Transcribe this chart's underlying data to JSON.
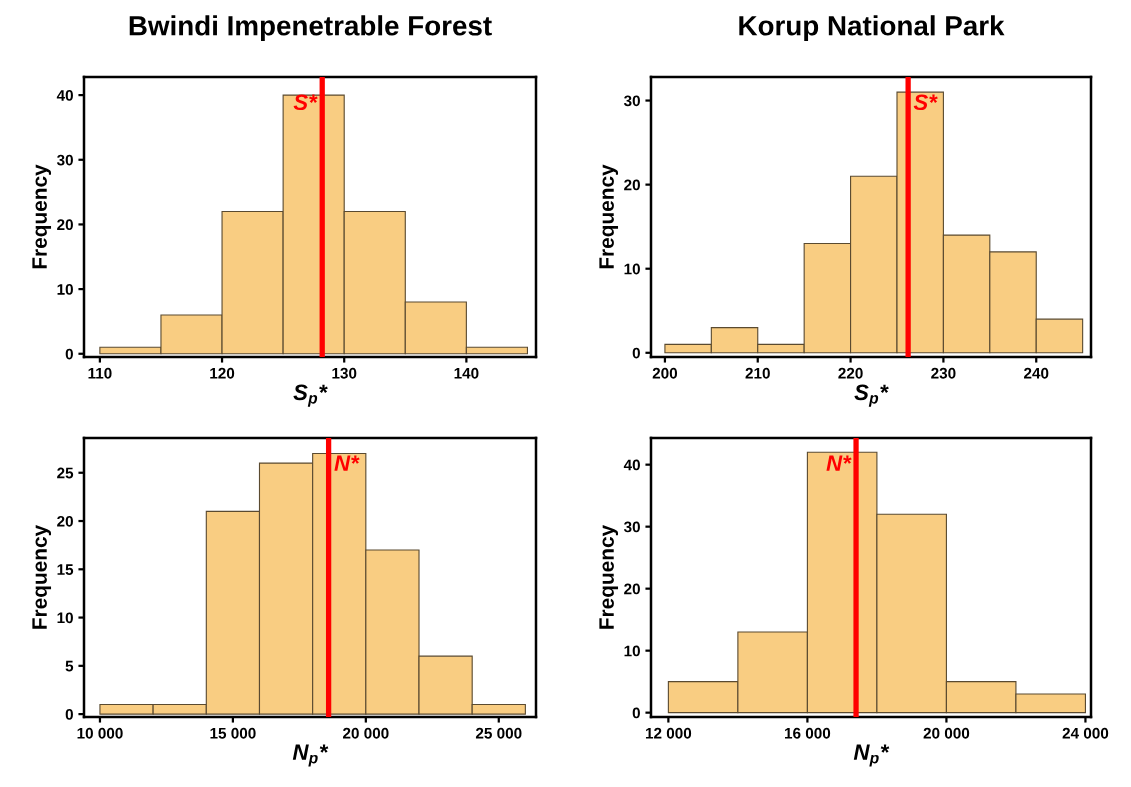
{
  "chart_data": [
    {
      "type": "histogram",
      "title": "Bwindi Impenetrable Forest",
      "xlabel": "S$_{p}$*",
      "ylabel": "Frequency",
      "color": "#f9cd82",
      "bins": [
        110,
        115,
        120,
        125,
        130,
        135,
        140,
        145
      ],
      "values": [
        1,
        6,
        22,
        40,
        22,
        8,
        1
      ],
      "xlim": [
        108.7,
        145.7
      ],
      "xticks": [
        110,
        120,
        130,
        140
      ],
      "ylim": [
        -0.5,
        42.8
      ],
      "yticks": [
        0,
        10,
        20,
        30,
        40
      ],
      "grid": false,
      "ref_lines": [
        {
          "axis": "x",
          "value": 128.2,
          "label": "S*",
          "color": "#ff0000"
        }
      ]
    },
    {
      "type": "histogram",
      "title": "Korup National Park",
      "xlabel": "S$_{p}$*",
      "ylabel": "Frequency",
      "color": "#f9cd82",
      "bins": [
        200,
        205,
        210,
        215,
        220,
        225,
        230,
        235,
        240,
        245
      ],
      "values": [
        1,
        3,
        1,
        13,
        21,
        31,
        14,
        12,
        4
      ],
      "xlim": [
        198.5,
        245.9
      ],
      "xticks": [
        200,
        210,
        220,
        230,
        240
      ],
      "ylim": [
        -0.5,
        32.8
      ],
      "yticks": [
        0,
        10,
        20,
        30
      ],
      "grid": false,
      "ref_lines": [
        {
          "axis": "x",
          "value": 226.2,
          "label": "S*",
          "color": "#ff0000"
        }
      ]
    },
    {
      "type": "histogram",
      "xlabel": "N$_{p}$*",
      "ylabel": "Frequency",
      "color": "#f9cd82",
      "bins": [
        10000,
        12000,
        14000,
        16000,
        18000,
        20000,
        22000,
        24000,
        26000
      ],
      "values": [
        1,
        1,
        21,
        26,
        27,
        17,
        6,
        1
      ],
      "xlim": [
        9400,
        26400
      ],
      "xticks": [
        {
          "value": 10000,
          "label": "10 000"
        },
        {
          "value": 15000,
          "label": "15 000"
        },
        {
          "value": 20000,
          "label": "20 000"
        },
        {
          "value": 25000,
          "label": "25 000"
        }
      ],
      "ylim": [
        -0.3,
        28.6
      ],
      "yticks": [
        0,
        5,
        10,
        15,
        20,
        25
      ],
      "grid": false,
      "ref_lines": [
        {
          "axis": "x",
          "value": 18600,
          "label": "N*",
          "color": "#ff0000"
        }
      ]
    },
    {
      "type": "histogram",
      "xlabel": "N$_{p}$*",
      "ylabel": "Frequency",
      "color": "#f9cd82",
      "bins": [
        12000,
        14000,
        16000,
        18000,
        20000,
        22000,
        24000
      ],
      "values": [
        5,
        13,
        42,
        32,
        5,
        3
      ],
      "xlim": [
        11500,
        24160
      ],
      "xticks": [
        {
          "value": 12000,
          "label": "12 000"
        },
        {
          "value": 16000,
          "label": "16 000"
        },
        {
          "value": 20000,
          "label": "20 000"
        },
        {
          "value": 24000,
          "label": "24 000"
        }
      ],
      "ylim": [
        -0.7,
        44.3
      ],
      "yticks": [
        0,
        10,
        20,
        30,
        40
      ],
      "grid": false,
      "ref_lines": [
        {
          "axis": "x",
          "value": 17400,
          "label": "N*",
          "color": "#ff0000"
        }
      ]
    }
  ]
}
